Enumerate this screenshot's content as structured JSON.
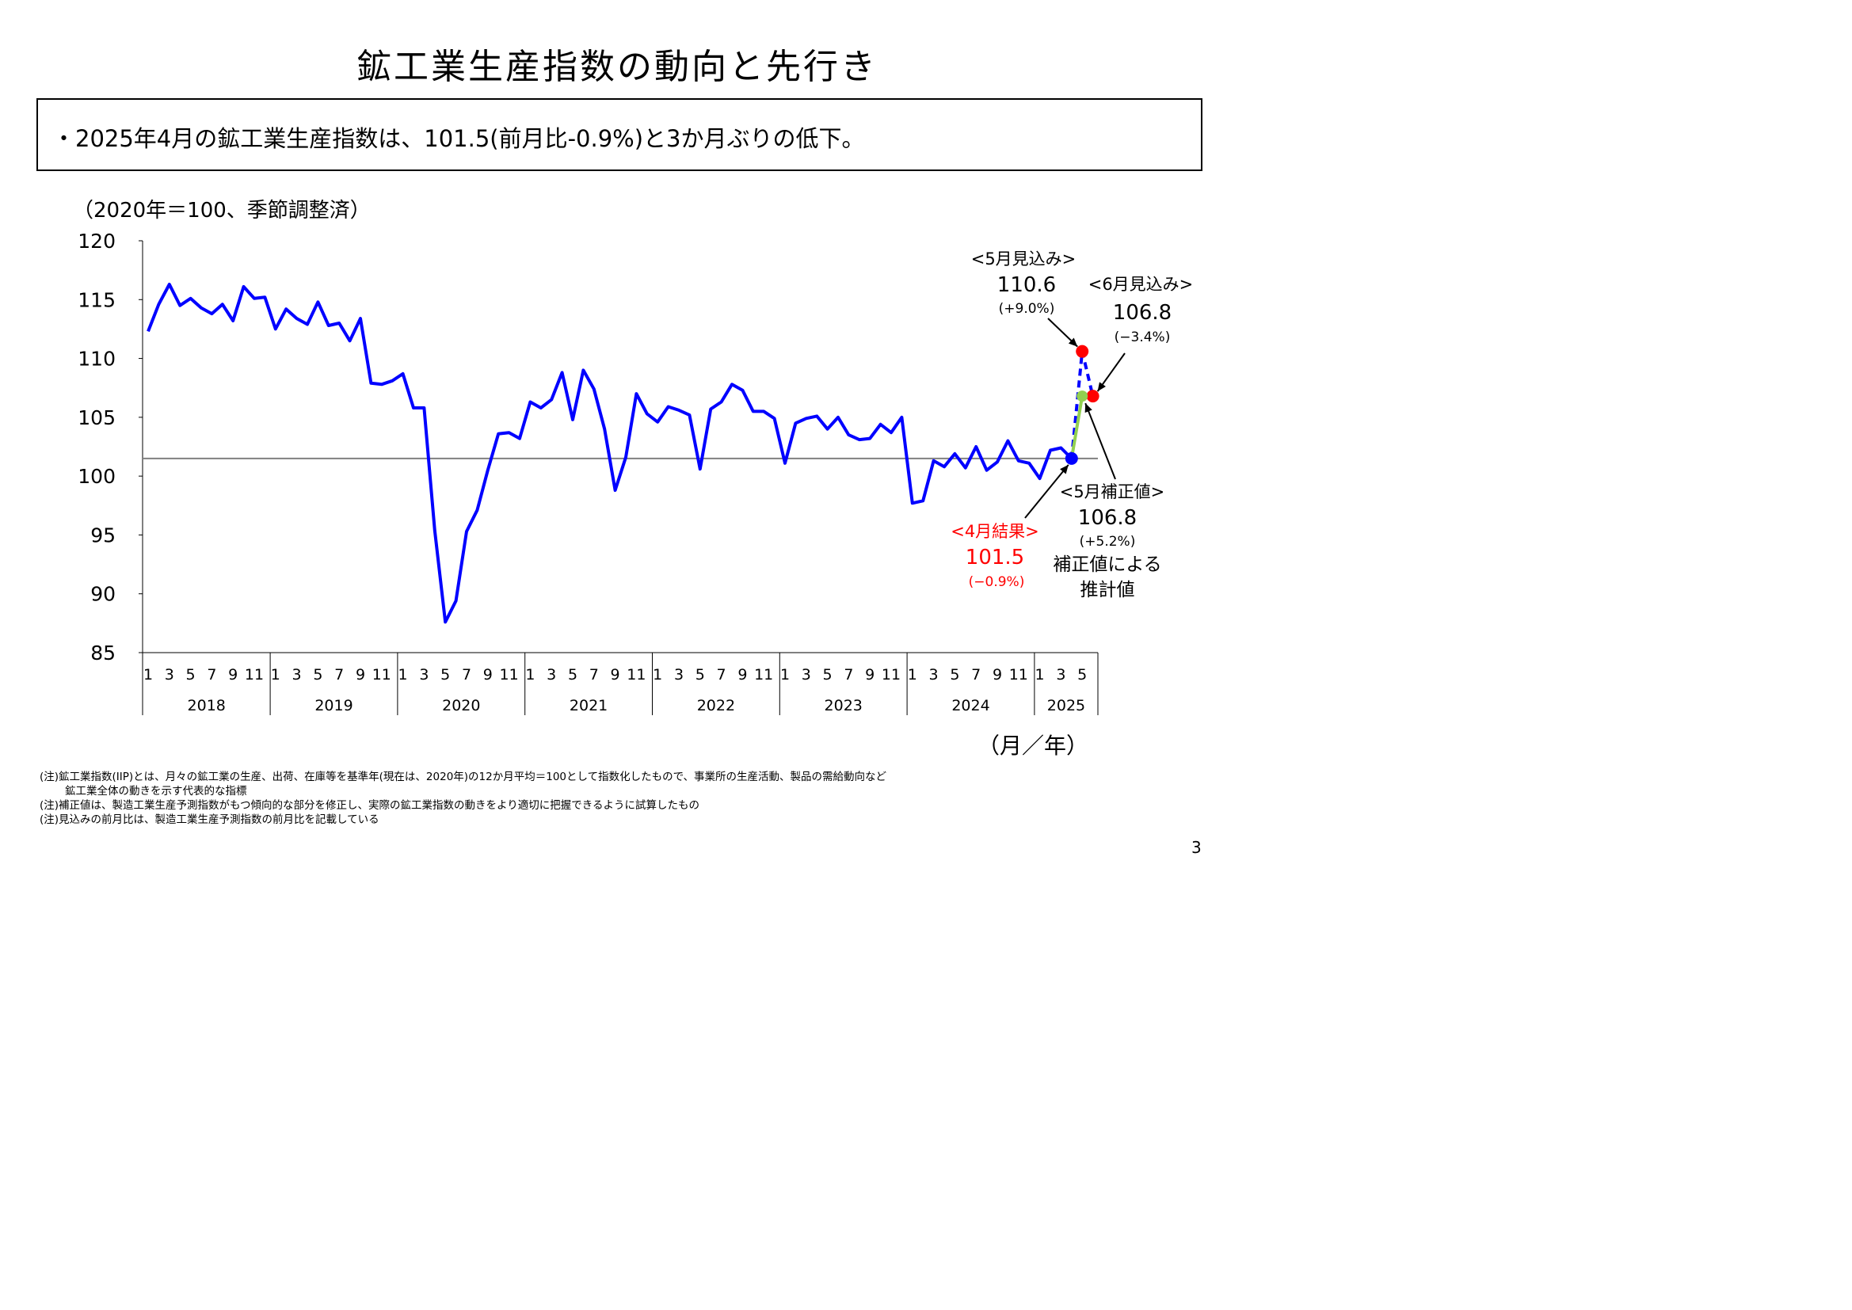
{
  "title": "鉱工業生産指数の動向と先行き",
  "summary": "・2025年4月の鉱工業生産指数は、101.5(前月比-0.9%)と3か月ぶりの低下。",
  "notes": [
    "(注)鉱工業指数(IIP)とは、月々の鉱工業の生産、出荷、在庫等を基準年(現在は、2020年)の12か月平均＝100として指数化したもので、事業所の生産活動、製品の需給動向など",
    "鉱工業全体の動きを示す代表的な指標",
    "(注)補正値は、製造工業生産予測指数がもつ傾向的な部分を修正し、実際の鉱工業指数の動きをより適切に把握できるように試算したもの",
    "(注)見込みの前月比は、製造工業生産予測指数の前月比を記載している"
  ],
  "page_number": "3",
  "chart_data": {
    "type": "line",
    "ylabel": "（2020年＝100、季節調整済）",
    "xlabel": "（月／年）",
    "ylim": [
      85,
      120
    ],
    "yticks": [
      85,
      90,
      95,
      100,
      105,
      110,
      115,
      120
    ],
    "years": [
      "2018",
      "2019",
      "2020",
      "2021",
      "2022",
      "2023",
      "2024",
      "2025"
    ],
    "month_ticks": [
      "1",
      "3",
      "5",
      "7",
      "9",
      "11"
    ],
    "month_ticks_2025": [
      "1",
      "3",
      "5"
    ],
    "reference_line": 101.5,
    "grid": false,
    "legend": "none",
    "colors": {
      "actual": "#0000ff",
      "forecast": "#0000ff",
      "corrected": "#92d050",
      "forecast_point": "#ff0000",
      "result_point": "#0000ff",
      "reference": "#808080",
      "result_label": "#ff0000"
    },
    "series": [
      {
        "name": "",
        "start": "2018-01",
        "values": [
          112.3,
          114.6,
          116.3,
          114.5,
          115.1,
          114.3,
          113.8,
          114.6,
          113.2,
          116.1,
          115.1,
          115.2,
          112.5,
          114.2,
          113.4,
          112.9,
          114.8,
          112.8,
          113.0,
          111.5,
          113.4,
          107.9,
          107.8,
          108.1,
          108.7,
          105.8,
          105.8,
          95.4,
          87.6,
          89.4,
          95.3,
          97.1,
          100.5,
          103.6,
          103.7,
          103.2,
          106.3,
          105.8,
          106.5,
          108.8,
          104.8,
          109.0,
          107.4,
          104.0,
          98.8,
          101.6,
          107.0,
          105.3,
          104.6,
          105.9,
          105.6,
          105.2,
          100.6,
          105.7,
          106.3,
          107.8,
          107.3,
          105.5,
          105.5,
          104.9,
          101.1,
          104.5,
          104.9,
          105.1,
          104.0,
          105.0,
          103.5,
          103.1,
          103.2,
          104.4,
          103.7,
          105.0,
          97.7,
          97.9,
          101.3,
          100.8,
          101.9,
          100.7,
          102.5,
          100.5,
          101.2,
          103.0,
          101.3,
          101.1,
          99.8,
          102.2,
          102.4,
          101.5
        ]
      }
    ],
    "forecast": [
      {
        "month": "2025-04",
        "value": 101.5
      },
      {
        "month": "2025-05",
        "value": 110.6
      },
      {
        "month": "2025-06",
        "value": 106.8
      }
    ],
    "corrected": [
      {
        "month": "2025-04",
        "value": 101.5
      },
      {
        "month": "2025-05",
        "value": 106.8
      }
    ],
    "annotations": {
      "may_forecast": {
        "title": "<5月見込み>",
        "value": "110.6",
        "change": "(+9.0%)"
      },
      "june_forecast": {
        "title": "<6月見込み>",
        "value": "106.8",
        "change": "(−3.4%)"
      },
      "may_corrected": {
        "title": "<5月補正値>",
        "value": "106.8",
        "change": "(+5.2%)",
        "note1": "補正値による",
        "note2": "推計値"
      },
      "april_result": {
        "title": "<4月結果>",
        "value": "101.5",
        "change": "(−0.9%)"
      }
    }
  }
}
